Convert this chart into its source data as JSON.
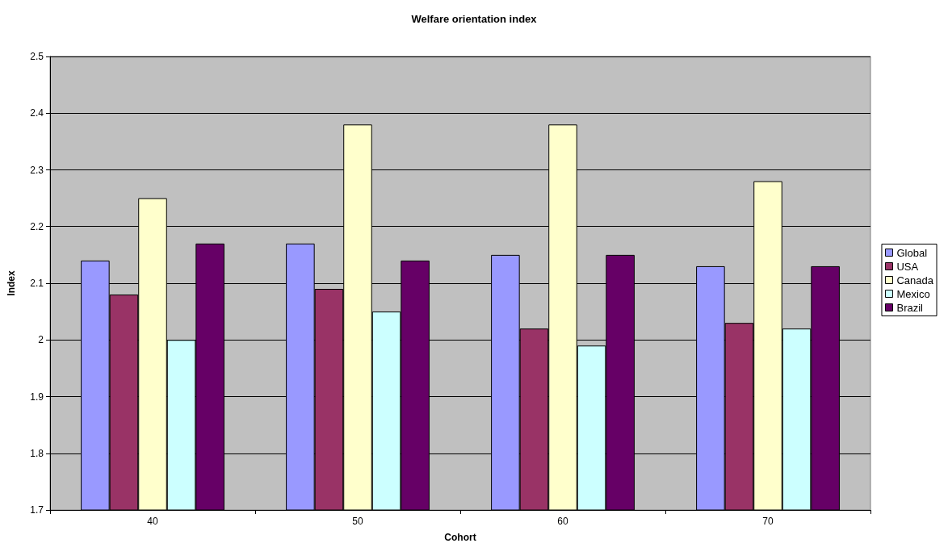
{
  "chart_data": {
    "type": "bar",
    "title": "Welfare orientation index",
    "xlabel": "Cohort",
    "ylabel": "Index",
    "categories": [
      "40",
      "50",
      "60",
      "70"
    ],
    "series": [
      {
        "name": "Global",
        "color": "#9999ff",
        "values": [
          2.14,
          2.17,
          2.15,
          2.13
        ]
      },
      {
        "name": "USA",
        "color": "#993366",
        "values": [
          2.08,
          2.09,
          2.02,
          2.03
        ]
      },
      {
        "name": "Canada",
        "color": "#ffffcc",
        "values": [
          2.25,
          2.38,
          2.38,
          2.28
        ]
      },
      {
        "name": "Mexico",
        "color": "#ccffff",
        "values": [
          2.0,
          2.05,
          1.99,
          2.02
        ]
      },
      {
        "name": "Brazil",
        "color": "#660066",
        "values": [
          2.17,
          2.14,
          2.15,
          2.13
        ]
      }
    ],
    "ylim": [
      1.7,
      2.5
    ],
    "yticks": [
      1.7,
      1.8,
      1.9,
      2,
      2.1,
      2.2,
      2.3,
      2.4,
      2.5
    ],
    "grid": "y",
    "legend": "right"
  }
}
